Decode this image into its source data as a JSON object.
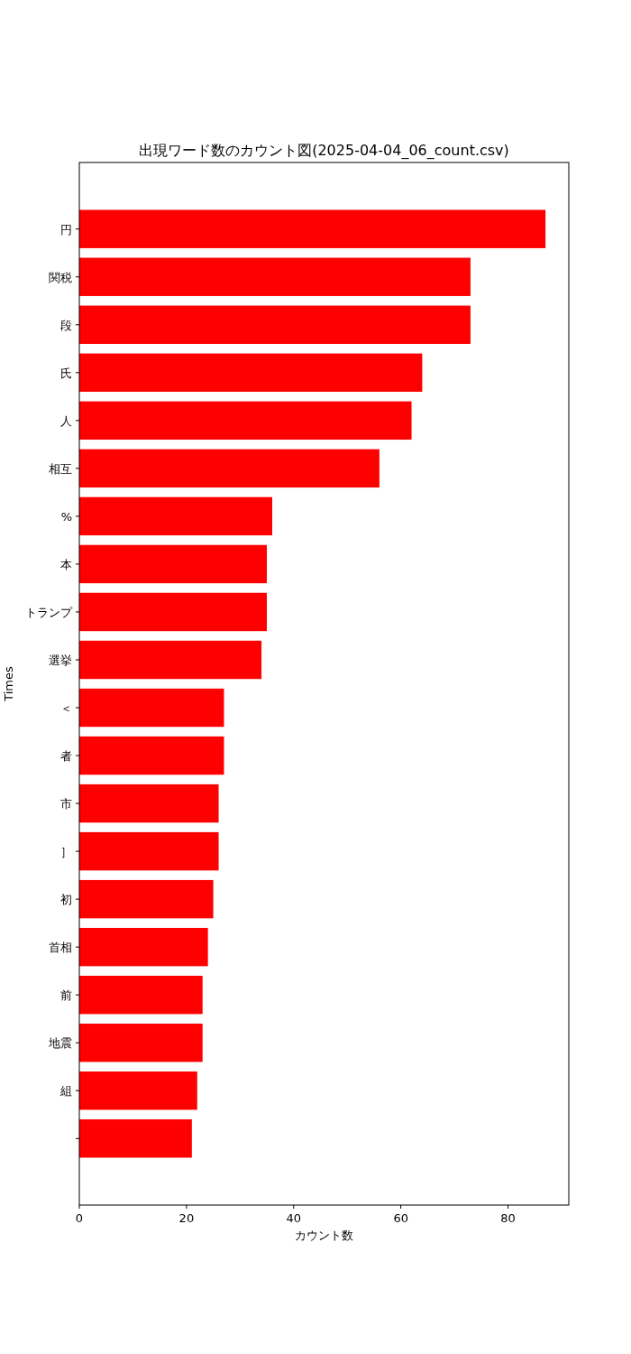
{
  "chart_data": {
    "type": "bar",
    "orientation": "horizontal",
    "title": "出現ワード数のカウント図(2025-04-04_06_count.csv)",
    "xlabel": "カウント数",
    "ylabel": "Times",
    "categories": [
      "円",
      "関税",
      "段",
      "氏",
      "人",
      "相互",
      "%",
      "本",
      "トランプ",
      "選挙",
      "＜",
      "者",
      "市",
      "］",
      "初",
      "首相",
      "前",
      "地震",
      "組",
      null
    ],
    "values": [
      87,
      73,
      73,
      64,
      62,
      56,
      36,
      35,
      35,
      34,
      27,
      27,
      26,
      26,
      25,
      24,
      23,
      23,
      22,
      21
    ],
    "color": "#ff0000",
    "xlim": [
      0,
      91.35
    ],
    "xticks": [
      0,
      20,
      40,
      60,
      80
    ]
  }
}
